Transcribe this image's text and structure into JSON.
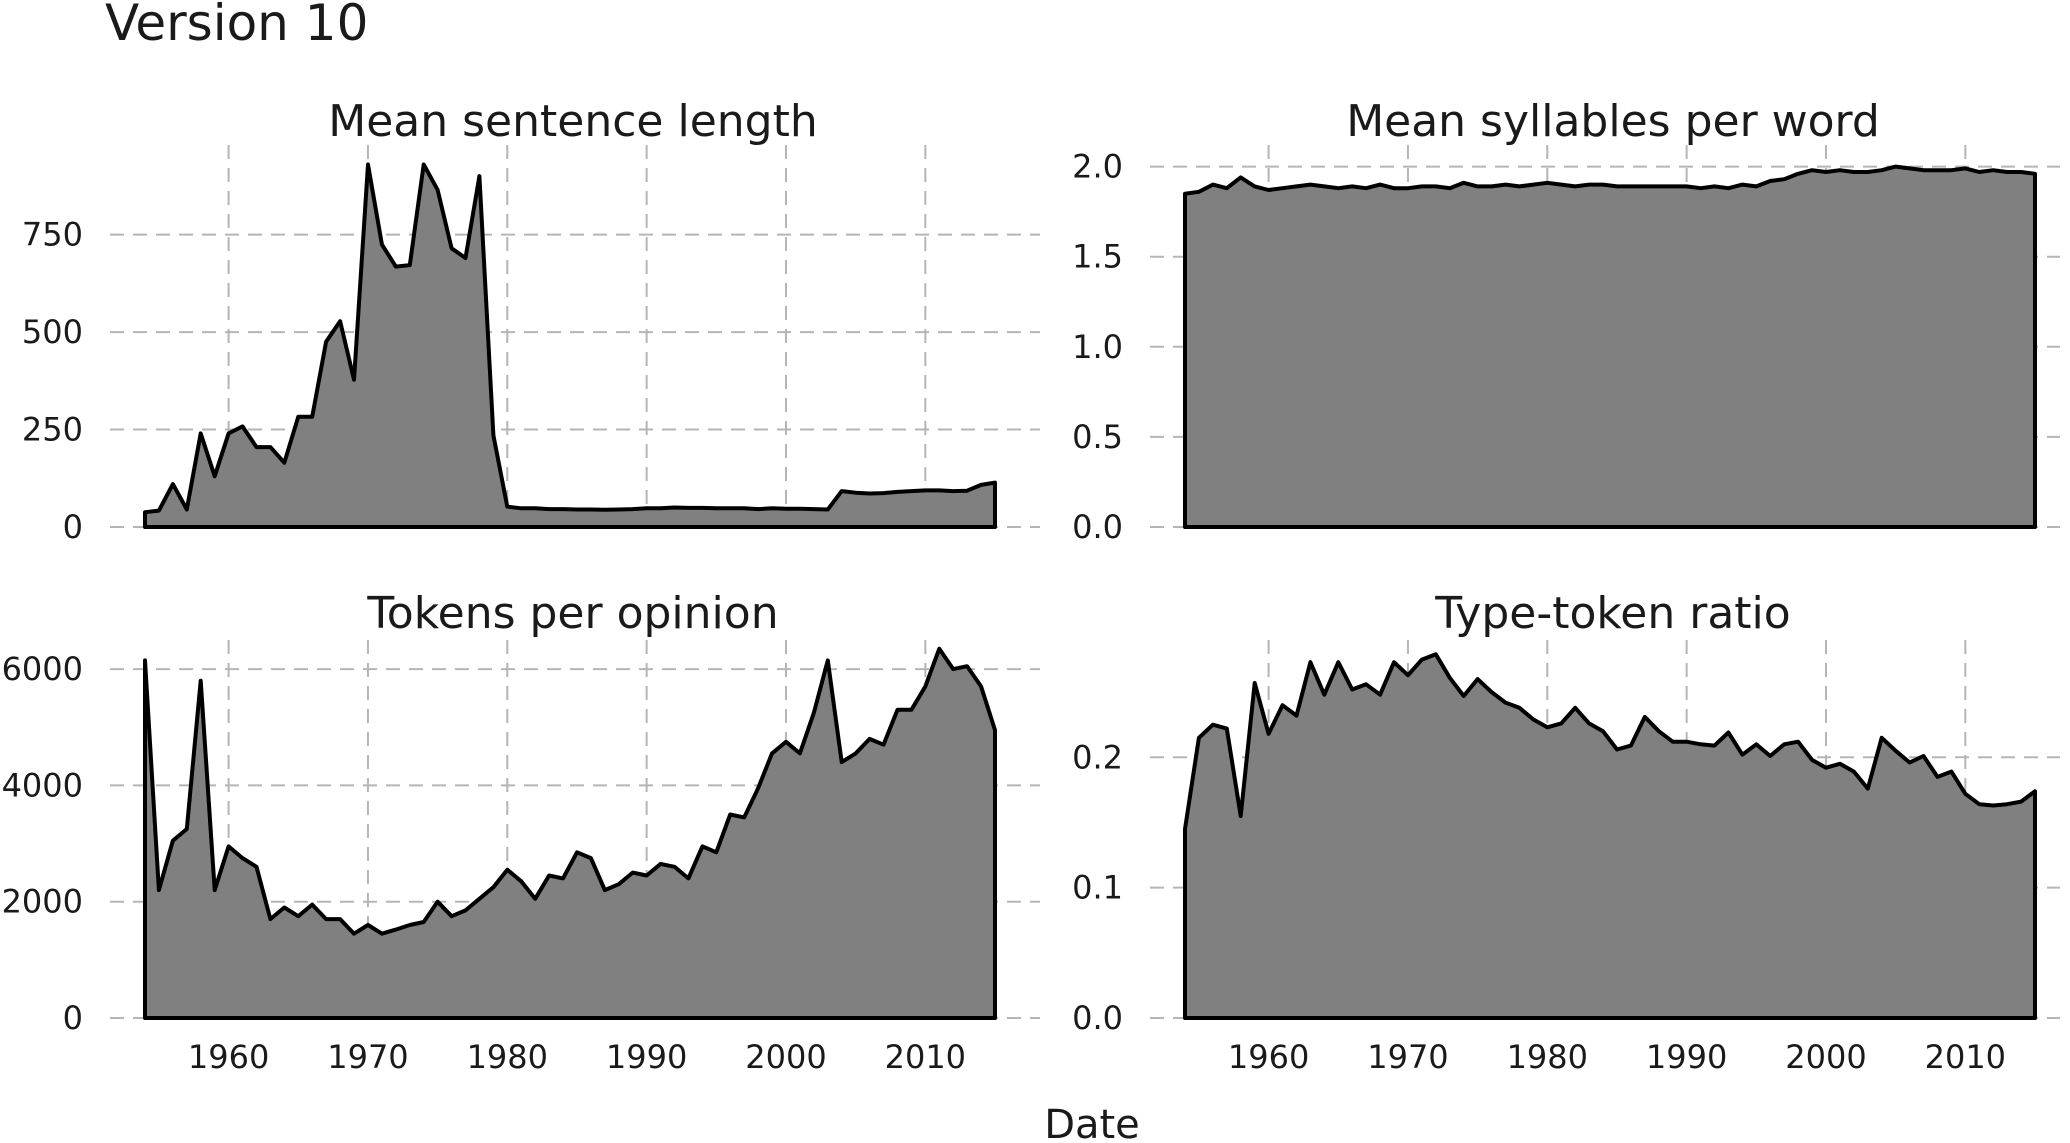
{
  "figure": {
    "title": "Version 10",
    "xlabel": "Date"
  },
  "chart_data": [
    {
      "type": "area",
      "title": "Mean sentence length",
      "xlim": [
        1954,
        2015
      ],
      "ylim": [
        0,
        980
      ],
      "xticks": [
        1960,
        1970,
        1980,
        1990,
        2000,
        2010
      ],
      "yticks": [
        0,
        250,
        500,
        750
      ],
      "show_x_tick_labels": false,
      "grid": true,
      "x": [
        1954,
        1955,
        1956,
        1957,
        1958,
        1959,
        1960,
        1961,
        1962,
        1963,
        1964,
        1965,
        1966,
        1967,
        1968,
        1969,
        1970,
        1971,
        1972,
        1973,
        1974,
        1975,
        1976,
        1977,
        1978,
        1979,
        1980,
        1981,
        1982,
        1983,
        1984,
        1985,
        1986,
        1987,
        1988,
        1989,
        1990,
        1991,
        1992,
        1993,
        1994,
        1995,
        1996,
        1997,
        1998,
        1999,
        2000,
        2001,
        2002,
        2003,
        2004,
        2005,
        2006,
        2007,
        2008,
        2009,
        2010,
        2011,
        2012,
        2013,
        2014,
        2015
      ],
      "y": [
        38,
        42,
        110,
        45,
        240,
        130,
        240,
        258,
        205,
        205,
        165,
        283,
        283,
        475,
        528,
        378,
        930,
        725,
        668,
        672,
        930,
        865,
        715,
        690,
        900,
        235,
        52,
        48,
        48,
        46,
        46,
        45,
        45,
        44,
        45,
        46,
        48,
        48,
        50,
        49,
        49,
        48,
        48,
        48,
        46,
        48,
        47,
        47,
        46,
        45,
        92,
        88,
        86,
        87,
        90,
        92,
        94,
        94,
        92,
        93,
        108,
        114
      ]
    },
    {
      "type": "area",
      "title": "Mean syllables per word",
      "xlim": [
        1954,
        2015
      ],
      "ylim": [
        0,
        2.12
      ],
      "xticks": [
        1960,
        1970,
        1980,
        1990,
        2000,
        2010
      ],
      "yticks": [
        0.0,
        0.5,
        1.0,
        1.5,
        2.0
      ],
      "ytick_labels": [
        "0.0",
        "0.5",
        "1.0",
        "1.5",
        "2.0"
      ],
      "show_x_tick_labels": false,
      "grid": true,
      "x": [
        1954,
        1955,
        1956,
        1957,
        1958,
        1959,
        1960,
        1961,
        1962,
        1963,
        1964,
        1965,
        1966,
        1967,
        1968,
        1969,
        1970,
        1971,
        1972,
        1973,
        1974,
        1975,
        1976,
        1977,
        1978,
        1979,
        1980,
        1981,
        1982,
        1983,
        1984,
        1985,
        1986,
        1987,
        1988,
        1989,
        1990,
        1991,
        1992,
        1993,
        1994,
        1995,
        1996,
        1997,
        1998,
        1999,
        2000,
        2001,
        2002,
        2003,
        2004,
        2005,
        2006,
        2007,
        2008,
        2009,
        2010,
        2011,
        2012,
        2013,
        2014,
        2015
      ],
      "y": [
        1.85,
        1.86,
        1.9,
        1.88,
        1.94,
        1.89,
        1.87,
        1.88,
        1.89,
        1.9,
        1.89,
        1.88,
        1.89,
        1.88,
        1.9,
        1.88,
        1.88,
        1.89,
        1.89,
        1.88,
        1.91,
        1.89,
        1.89,
        1.9,
        1.89,
        1.9,
        1.91,
        1.9,
        1.89,
        1.9,
        1.9,
        1.89,
        1.89,
        1.89,
        1.89,
        1.89,
        1.89,
        1.88,
        1.89,
        1.88,
        1.9,
        1.89,
        1.92,
        1.93,
        1.96,
        1.98,
        1.97,
        1.98,
        1.97,
        1.97,
        1.98,
        2.0,
        1.99,
        1.98,
        1.98,
        1.98,
        1.99,
        1.97,
        1.98,
        1.97,
        1.97,
        1.96
      ]
    },
    {
      "type": "area",
      "title": "Tokens per opinion",
      "xlim": [
        1954,
        2015
      ],
      "ylim": [
        0,
        6500
      ],
      "xticks": [
        1960,
        1970,
        1980,
        1990,
        2000,
        2010
      ],
      "xtick_labels": [
        "1960",
        "1970",
        "1980",
        "1990",
        "2000",
        "2010"
      ],
      "yticks": [
        0,
        2000,
        4000,
        6000
      ],
      "show_x_tick_labels": true,
      "grid": true,
      "x": [
        1954,
        1955,
        1956,
        1957,
        1958,
        1959,
        1960,
        1961,
        1962,
        1963,
        1964,
        1965,
        1966,
        1967,
        1968,
        1969,
        1970,
        1971,
        1972,
        1973,
        1974,
        1975,
        1976,
        1977,
        1978,
        1979,
        1980,
        1981,
        1982,
        1983,
        1984,
        1985,
        1986,
        1987,
        1988,
        1989,
        1990,
        1991,
        1992,
        1993,
        1994,
        1995,
        1996,
        1997,
        1998,
        1999,
        2000,
        2001,
        2002,
        2003,
        2004,
        2005,
        2006,
        2007,
        2008,
        2009,
        2010,
        2011,
        2012,
        2013,
        2014,
        2015
      ],
      "y": [
        6150,
        2200,
        3050,
        3250,
        5800,
        2200,
        2950,
        2750,
        2600,
        1700,
        1900,
        1750,
        1950,
        1700,
        1700,
        1450,
        1600,
        1450,
        1520,
        1600,
        1650,
        2000,
        1750,
        1850,
        2050,
        2250,
        2550,
        2350,
        2050,
        2450,
        2400,
        2850,
        2750,
        2200,
        2300,
        2500,
        2450,
        2650,
        2600,
        2400,
        2950,
        2850,
        3500,
        3450,
        3950,
        4550,
        4750,
        4550,
        5250,
        6150,
        4400,
        4550,
        4800,
        4700,
        5300,
        5300,
        5700,
        6350,
        6000,
        6050,
        5700,
        4950
      ]
    },
    {
      "type": "area",
      "title": "Type-token ratio",
      "xlim": [
        1954,
        2015
      ],
      "ylim": [
        0,
        0.29
      ],
      "xticks": [
        1960,
        1970,
        1980,
        1990,
        2000,
        2010
      ],
      "xtick_labels": [
        "1960",
        "1970",
        "1980",
        "1990",
        "2000",
        "2010"
      ],
      "yticks": [
        0.0,
        0.1,
        0.2
      ],
      "ytick_labels": [
        "0.0",
        "0.1",
        "0.2"
      ],
      "show_x_tick_labels": true,
      "grid": true,
      "x": [
        1954,
        1955,
        1956,
        1957,
        1958,
        1959,
        1960,
        1961,
        1962,
        1963,
        1964,
        1965,
        1966,
        1967,
        1968,
        1969,
        1970,
        1971,
        1972,
        1973,
        1974,
        1975,
        1976,
        1977,
        1978,
        1979,
        1980,
        1981,
        1982,
        1983,
        1984,
        1985,
        1986,
        1987,
        1988,
        1989,
        1990,
        1991,
        1992,
        1993,
        1994,
        1995,
        1996,
        1997,
        1998,
        1999,
        2000,
        2001,
        2002,
        2003,
        2004,
        2005,
        2006,
        2007,
        2008,
        2009,
        2010,
        2011,
        2012,
        2013,
        2014,
        2015
      ],
      "y": [
        0.145,
        0.215,
        0.225,
        0.222,
        0.155,
        0.257,
        0.218,
        0.24,
        0.232,
        0.273,
        0.248,
        0.273,
        0.252,
        0.256,
        0.248,
        0.273,
        0.263,
        0.275,
        0.279,
        0.261,
        0.247,
        0.26,
        0.25,
        0.242,
        0.238,
        0.229,
        0.223,
        0.226,
        0.238,
        0.226,
        0.22,
        0.206,
        0.209,
        0.231,
        0.22,
        0.212,
        0.212,
        0.21,
        0.209,
        0.219,
        0.202,
        0.21,
        0.201,
        0.21,
        0.212,
        0.198,
        0.192,
        0.195,
        0.189,
        0.176,
        0.215,
        0.205,
        0.196,
        0.201,
        0.185,
        0.189,
        0.172,
        0.164,
        0.163,
        0.164,
        0.166,
        0.174
      ]
    }
  ]
}
